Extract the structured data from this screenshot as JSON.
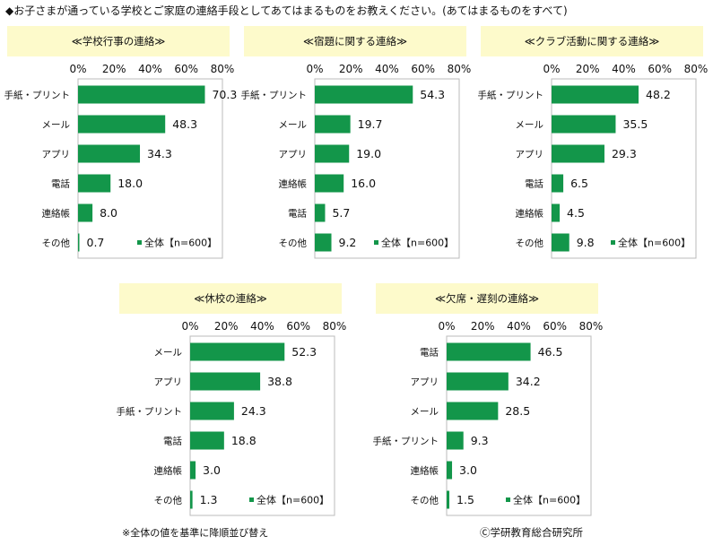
{
  "title": "◆お子さまが通っている学校とご家庭の連絡手段としてあてはまるものをお教えください。(あてはまるものをすべて)",
  "footnote": "※全体の値を基準に降順並び替え",
  "credit": "Ⓒ学研教育総合研究所",
  "colors": {
    "bar": "#13964a",
    "header_bg": "#fdfacb",
    "frame": "#bbbbbb"
  },
  "chart_data": [
    {
      "type": "bar",
      "orientation": "horizontal",
      "title": "≪学校行事の連絡≫",
      "categories": [
        "手紙・プリント",
        "メール",
        "アプリ",
        "電話",
        "連絡帳",
        "その他"
      ],
      "series": [
        {
          "name": "全体【n=600】",
          "values": [
            70.3,
            48.3,
            34.3,
            18.0,
            8.0,
            0.7
          ]
        }
      ],
      "value_labels": [
        "70.3",
        "48.3",
        "34.3",
        "18.0",
        "8.0",
        "0.7"
      ],
      "xlim": [
        0,
        80
      ],
      "ticks": [
        "0%",
        "20%",
        "40%",
        "60%",
        "80%"
      ],
      "legend_position": "bottom-right"
    },
    {
      "type": "bar",
      "orientation": "horizontal",
      "title": "≪宿題に関する連絡≫",
      "categories": [
        "手紙・プリント",
        "メール",
        "アプリ",
        "連絡帳",
        "電話",
        "その他"
      ],
      "series": [
        {
          "name": "全体【n=600】",
          "values": [
            54.3,
            19.7,
            19.0,
            16.0,
            5.7,
            9.2
          ]
        }
      ],
      "value_labels": [
        "54.3",
        "19.7",
        "19.0",
        "16.0",
        "5.7",
        "9.2"
      ],
      "xlim": [
        0,
        80
      ],
      "ticks": [
        "0%",
        "20%",
        "40%",
        "60%",
        "80%"
      ],
      "legend_position": "bottom-right"
    },
    {
      "type": "bar",
      "orientation": "horizontal",
      "title": "≪クラブ活動に関する連絡≫",
      "categories": [
        "手紙・プリント",
        "メール",
        "アプリ",
        "電話",
        "連絡帳",
        "その他"
      ],
      "series": [
        {
          "name": "全体【n=600】",
          "values": [
            48.2,
            35.5,
            29.3,
            6.5,
            4.5,
            9.8
          ]
        }
      ],
      "value_labels": [
        "48.2",
        "35.5",
        "29.3",
        "6.5",
        "4.5",
        "9.8"
      ],
      "xlim": [
        0,
        80
      ],
      "ticks": [
        "0%",
        "20%",
        "40%",
        "60%",
        "80%"
      ],
      "legend_position": "bottom-right"
    },
    {
      "type": "bar",
      "orientation": "horizontal",
      "title": "≪休校の連絡≫",
      "categories": [
        "メール",
        "アプリ",
        "手紙・プリント",
        "電話",
        "連絡帳",
        "その他"
      ],
      "series": [
        {
          "name": "全体【n=600】",
          "values": [
            52.3,
            38.8,
            24.3,
            18.8,
            3.0,
            1.3
          ]
        }
      ],
      "value_labels": [
        "52.3",
        "38.8",
        "24.3",
        "18.8",
        "3.0",
        "1.3"
      ],
      "xlim": [
        0,
        80
      ],
      "ticks": [
        "0%",
        "20%",
        "40%",
        "60%",
        "80%"
      ],
      "legend_position": "bottom-right"
    },
    {
      "type": "bar",
      "orientation": "horizontal",
      "title": "≪欠席・遅刻の連絡≫",
      "categories": [
        "電話",
        "アプリ",
        "メール",
        "手紙・プリント",
        "連絡帳",
        "その他"
      ],
      "series": [
        {
          "name": "全体【n=600】",
          "values": [
            46.5,
            34.2,
            28.5,
            9.3,
            3.0,
            1.5
          ]
        }
      ],
      "value_labels": [
        "46.5",
        "34.2",
        "28.5",
        "9.3",
        "3.0",
        "1.5"
      ],
      "xlim": [
        0,
        80
      ],
      "ticks": [
        "0%",
        "20%",
        "40%",
        "60%",
        "80%"
      ],
      "legend_position": "bottom-right"
    }
  ]
}
